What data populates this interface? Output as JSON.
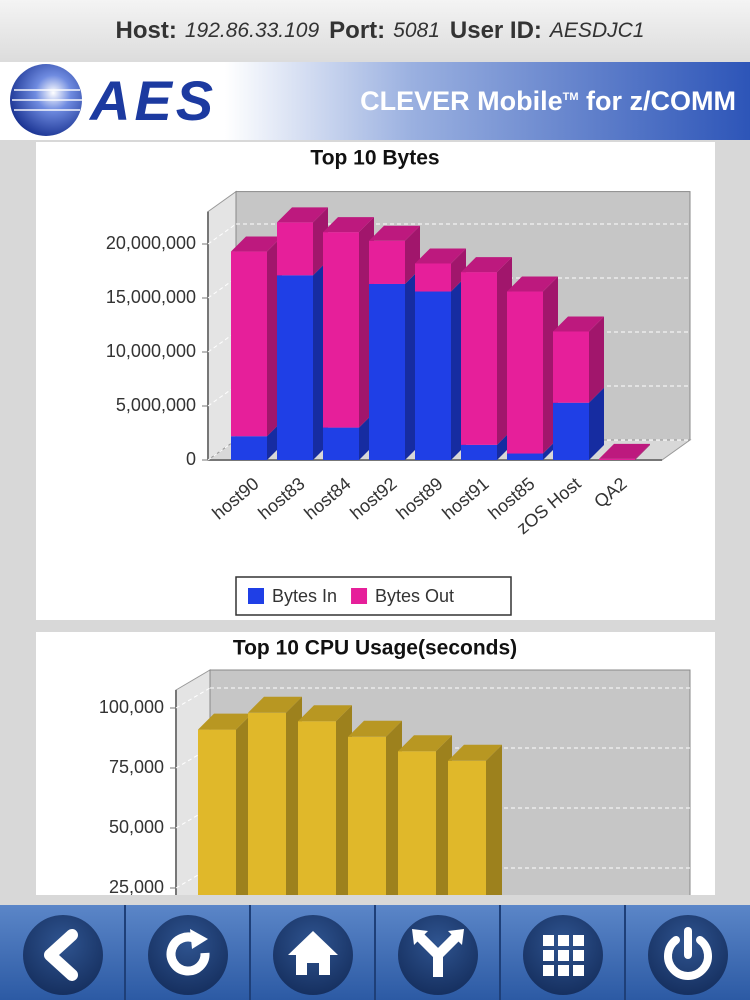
{
  "header": {
    "host_label": "Host:",
    "host": "192.86.33.109",
    "port_label": "Port:",
    "port": "5081",
    "user_label": "User ID:",
    "user": "AESDJC1"
  },
  "banner": {
    "logo": "AES",
    "product": "CLEVER Mobile",
    "trademark": "TM",
    "product_suffix": "for z/COMM"
  },
  "chart_data": [
    {
      "type": "bar",
      "stacked": true,
      "title": "Top 10 Bytes",
      "categories": [
        "host90",
        "host83",
        "host84",
        "host92",
        "host89",
        "host91",
        "host85",
        "zOS Host",
        "QA2"
      ],
      "series": [
        {
          "name": "Bytes In",
          "color": "#1f3fe6",
          "values": [
            2200000,
            17100000,
            3000000,
            16300000,
            15600000,
            1400000,
            600000,
            5300000,
            0
          ]
        },
        {
          "name": "Bytes Out",
          "color": "#e61f9a",
          "values": [
            17100000,
            4900000,
            18100000,
            4000000,
            2600000,
            16000000,
            15000000,
            6600000,
            100000
          ]
        }
      ],
      "ylim": [
        0,
        23000000
      ],
      "yticks": [
        0,
        {
          "value": 5000000,
          "label": "5,000,000"
        },
        {
          "value": 10000000,
          "label": "10,000,000"
        },
        {
          "value": 15000000,
          "label": "15,000,000"
        },
        {
          "value": 20000000,
          "label": "20,000,000"
        }
      ],
      "grid": true,
      "legend": "bottom"
    },
    {
      "type": "bar",
      "title": "Top 10 CPU Usage(seconds)",
      "categories": [
        null,
        null,
        null,
        null,
        null,
        null
      ],
      "values": [
        91000,
        98000,
        94500,
        88000,
        82000,
        78000
      ],
      "color": "#e0b82a",
      "ylim": [
        0,
        107500
      ],
      "yticks": [
        {
          "value": 25000,
          "label": "25,000"
        },
        {
          "value": 50000,
          "label": "50,000"
        },
        {
          "value": 75000,
          "label": "75,000"
        },
        {
          "value": 100000,
          "label": "100,000"
        }
      ],
      "grid": true
    }
  ]
}
